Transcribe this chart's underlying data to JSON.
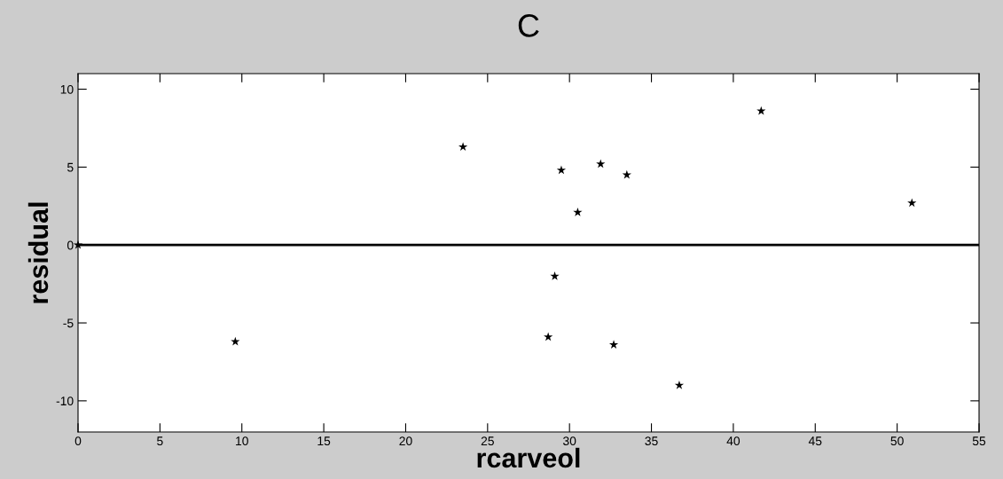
{
  "chart_data": {
    "type": "scatter",
    "title": "C",
    "xlabel": "rcarveol",
    "ylabel": "residual",
    "x": [
      0,
      9.6,
      23.5,
      29.5,
      30.5,
      31.9,
      33.5,
      29.1,
      28.7,
      32.7,
      36.7,
      41.7,
      50.9
    ],
    "series": [
      {
        "color": "#000000",
        "values": [
          0,
          -6.2,
          6.3,
          4.8,
          2.1,
          5.2,
          4.5,
          -2.0,
          -5.9,
          -6.4,
          -9.0,
          8.6,
          2.7
        ]
      }
    ],
    "xlim": [
      0,
      55
    ],
    "xticks": [
      0,
      5,
      10,
      15,
      20,
      25,
      30,
      35,
      40,
      45,
      50,
      55
    ],
    "ylim": [
      -12,
      11
    ],
    "yticks": [
      -10,
      -5,
      0,
      5,
      10
    ],
    "ref_lines": [
      {
        "axis": "y",
        "value": 0,
        "label": null,
        "color": "#000000"
      }
    ],
    "marker": "star",
    "grid": false,
    "legend": false
  }
}
